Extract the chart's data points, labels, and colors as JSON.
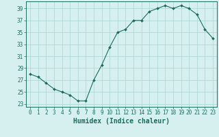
{
  "x": [
    0,
    1,
    2,
    3,
    4,
    5,
    6,
    7,
    8,
    9,
    10,
    11,
    12,
    13,
    14,
    15,
    16,
    17,
    18,
    19,
    20,
    21,
    22,
    23
  ],
  "y": [
    28,
    27.5,
    26.5,
    25.5,
    25,
    24.5,
    23.5,
    23.5,
    27,
    29.5,
    32.5,
    35,
    35.5,
    37,
    37,
    38.5,
    39,
    39.5,
    39,
    39.5,
    39,
    38,
    35.5,
    34
  ],
  "line_color": "#1a6b5a",
  "marker": "D",
  "marker_size": 2.0,
  "bg_color": "#d6f0f0",
  "grid_color": "#b0d8d8",
  "xlabel": "Humidex (Indice chaleur)",
  "ylim": [
    22.5,
    40.2
  ],
  "xlim": [
    -0.5,
    23.5
  ],
  "yticks": [
    23,
    25,
    27,
    29,
    31,
    33,
    35,
    37,
    39
  ],
  "xticks": [
    0,
    1,
    2,
    3,
    4,
    5,
    6,
    7,
    8,
    9,
    10,
    11,
    12,
    13,
    14,
    15,
    16,
    17,
    18,
    19,
    20,
    21,
    22,
    23
  ],
  "tick_color": "#1a6b5a",
  "tick_fontsize": 5.5,
  "xlabel_fontsize": 7.0,
  "xlabel_fontweight": "bold"
}
